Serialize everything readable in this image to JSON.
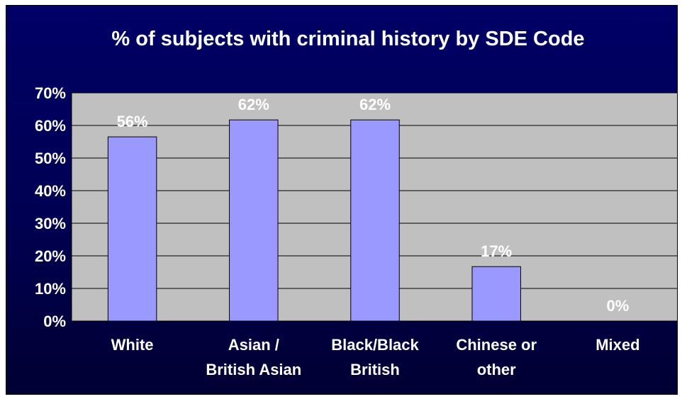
{
  "colors": {
    "background": "#000066",
    "plot_area": "#c0c0c0",
    "bar_fill": "#9999ff",
    "text": "#ffffff"
  },
  "chart_data": {
    "type": "bar",
    "title": "% of subjects with criminal history by SDE Code",
    "xlabel": "",
    "ylabel": "",
    "categories": [
      [
        "White"
      ],
      [
        "Asian /",
        "British Asian"
      ],
      [
        "Black/Black",
        "British"
      ],
      [
        "Chinese or",
        "other"
      ],
      [
        "Mixed"
      ]
    ],
    "values": [
      56.5,
      61.7,
      61.7,
      16.7,
      0
    ],
    "data_labels": [
      "56%",
      "62%",
      "62%",
      "17%",
      "0%"
    ],
    "ylim": [
      0,
      70
    ],
    "yticks": [
      "0%",
      "10%",
      "20%",
      "30%",
      "40%",
      "50%",
      "60%",
      "70%"
    ],
    "grid": true,
    "legend": "none"
  }
}
